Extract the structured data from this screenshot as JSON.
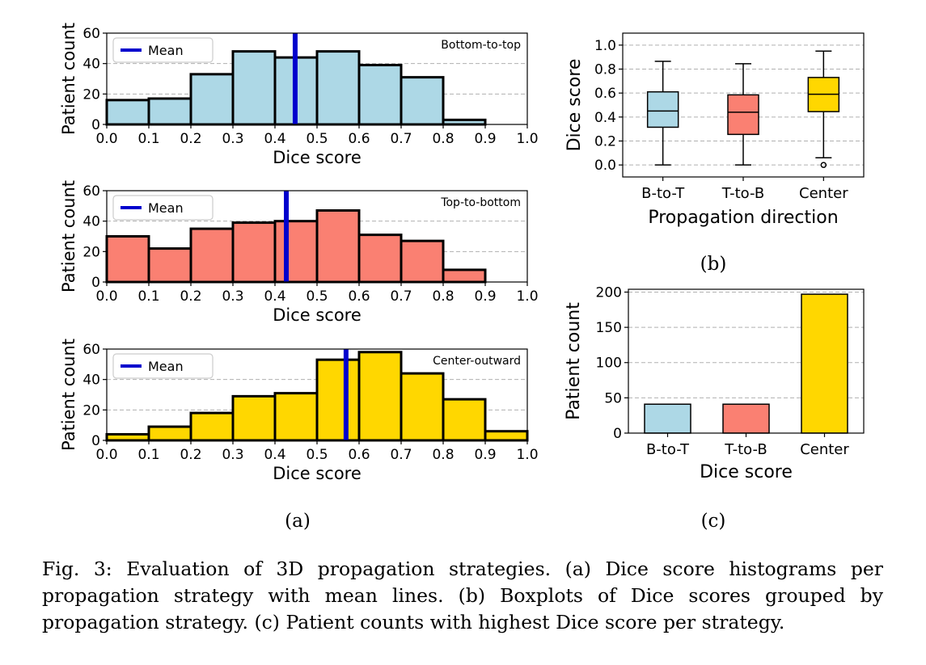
{
  "figure": {
    "histograms": [
      {
        "label": "Bottom-to-top",
        "color": "#add8e6",
        "bins": [
          0.0,
          0.1,
          0.2,
          0.3,
          0.4,
          0.5,
          0.6,
          0.7,
          0.8,
          0.9,
          1.0
        ],
        "counts": [
          16,
          17,
          33,
          48,
          44,
          48,
          39,
          31,
          3,
          0
        ],
        "mean": 0.448,
        "mean_color": "#0000cd",
        "legend": "Mean",
        "xlabel": "Dice score",
        "ylabel": "Patient count",
        "xticks": [
          "0.0",
          "0.1",
          "0.2",
          "0.3",
          "0.4",
          "0.5",
          "0.6",
          "0.7",
          "0.8",
          "0.9",
          "1.0"
        ],
        "yticks": [
          0,
          20,
          40,
          60
        ],
        "ylim": [
          0,
          60
        ]
      },
      {
        "label": "Top-to-bottom",
        "color": "#fa8072",
        "bins": [
          0.0,
          0.1,
          0.2,
          0.3,
          0.4,
          0.5,
          0.6,
          0.7,
          0.8,
          0.9,
          1.0
        ],
        "counts": [
          30,
          22,
          35,
          39,
          40,
          47,
          31,
          27,
          8,
          0
        ],
        "mean": 0.427,
        "mean_color": "#0000cd",
        "legend": "Mean",
        "xlabel": "Dice score",
        "ylabel": "Patient count",
        "xticks": [
          "0.0",
          "0.1",
          "0.2",
          "0.3",
          "0.4",
          "0.5",
          "0.6",
          "0.7",
          "0.8",
          "0.9",
          "1.0"
        ],
        "yticks": [
          0,
          20,
          40,
          60
        ],
        "ylim": [
          0,
          60
        ]
      },
      {
        "label": "Center-outward",
        "color": "#ffd700",
        "bins": [
          0.0,
          0.1,
          0.2,
          0.3,
          0.4,
          0.5,
          0.6,
          0.7,
          0.8,
          0.9,
          1.0
        ],
        "counts": [
          4,
          9,
          18,
          29,
          31,
          53,
          58,
          44,
          27,
          6
        ],
        "mean": 0.569,
        "mean_color": "#0000cd",
        "legend": "Mean",
        "xlabel": "Dice score",
        "ylabel": "Patient count",
        "xticks": [
          "0.0",
          "0.1",
          "0.2",
          "0.3",
          "0.4",
          "0.5",
          "0.6",
          "0.7",
          "0.8",
          "0.9",
          "1.0"
        ],
        "yticks": [
          0,
          20,
          40,
          60
        ],
        "ylim": [
          0,
          60
        ]
      }
    ],
    "boxplot": {
      "categories": [
        "B-to-T",
        "T-to-B",
        "Center"
      ],
      "colors": [
        "#add8e6",
        "#fa8072",
        "#ffd700"
      ],
      "boxes": [
        {
          "whislo": 0.0,
          "q1": 0.315,
          "med": 0.45,
          "q3": 0.61,
          "whishi": 0.865,
          "fliers": []
        },
        {
          "whislo": 0.0,
          "q1": 0.255,
          "med": 0.44,
          "q3": 0.585,
          "whishi": 0.845,
          "fliers": []
        },
        {
          "whislo": 0.06,
          "q1": 0.445,
          "med": 0.59,
          "q3": 0.73,
          "whishi": 0.95,
          "fliers": [
            0.0
          ]
        }
      ],
      "xlabel": "Propagation direction",
      "ylabel": "Dice score",
      "yticks": [
        "0.0",
        "0.2",
        "0.4",
        "0.6",
        "0.8",
        "1.0"
      ],
      "ylim": [
        -0.1,
        1.1
      ]
    },
    "barchart": {
      "categories": [
        "B-to-T",
        "T-to-B",
        "Center"
      ],
      "values": [
        41,
        41,
        197
      ],
      "colors": [
        "#add8e6",
        "#fa8072",
        "#ffd700"
      ],
      "xlabel": "Dice score",
      "ylabel": "Patient count",
      "yticks": [
        0,
        50,
        100,
        150,
        200
      ],
      "ylim": [
        0,
        204
      ]
    },
    "panel_labels": {
      "a": "(a)",
      "b": "(b)",
      "c": "(c)"
    }
  },
  "caption": {
    "label": "Fig. 3:",
    "text": "Evaluation of 3D propagation strategies. (a) Dice score histograms per propagation strategy with mean lines. (b) Boxplots of Dice scores grouped by propagation strategy. (c) Patient counts with highest Dice score per strategy."
  }
}
